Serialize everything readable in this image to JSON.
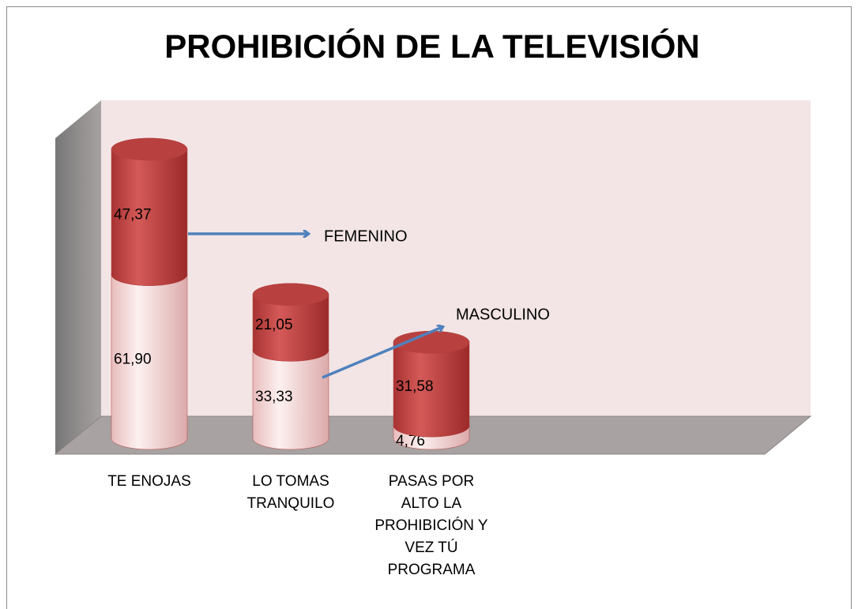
{
  "chart_data": {
    "type": "bar",
    "stacked": true,
    "title": "PROHIBICIÓN DE LA TELEVISIÓN",
    "categories": [
      "TE ENOJAS",
      "LO TOMAS TRANQUILO",
      "PASAS POR ALTO LA PROHIBICIÓN Y VEZ TÚ PROGRAMA"
    ],
    "series": [
      {
        "name": "MASCULINO",
        "color": "#f2cccc",
        "values": [
          61.9,
          33.33,
          4.76
        ],
        "value_labels": [
          "61,90",
          "33,33",
          "4,76"
        ]
      },
      {
        "name": "FEMENINO",
        "color": "#c0504d",
        "values": [
          47.37,
          21.05,
          31.58
        ],
        "value_labels": [
          "47,37",
          "21,05",
          "31,58"
        ]
      }
    ]
  }
}
